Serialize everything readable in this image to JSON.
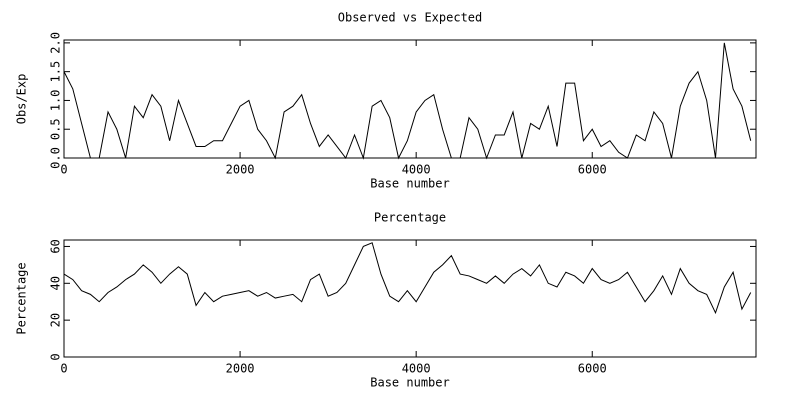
{
  "chart_data": [
    {
      "type": "line",
      "title": "Observed vs Expected",
      "xlabel": "Base number",
      "ylabel": "Obs/Exp",
      "color": "#000000",
      "x": [
        0,
        100,
        200,
        300,
        400,
        500,
        600,
        700,
        800,
        900,
        1000,
        1100,
        1200,
        1300,
        1400,
        1500,
        1600,
        1700,
        1800,
        1900,
        2000,
        2100,
        2200,
        2300,
        2400,
        2500,
        2600,
        2700,
        2800,
        2900,
        3000,
        3100,
        3200,
        3300,
        3400,
        3500,
        3600,
        3700,
        3800,
        3900,
        4000,
        4100,
        4200,
        4300,
        4400,
        4500,
        4600,
        4700,
        4800,
        4900,
        5000,
        5100,
        5200,
        5300,
        5400,
        5500,
        5600,
        5700,
        5800,
        5900,
        6000,
        6100,
        6200,
        6300,
        6400,
        6500,
        6600,
        6700,
        6800,
        6900,
        7000,
        7100,
        7200,
        7300,
        7400,
        7500,
        7600,
        7700,
        7800
      ],
      "values": [
        1.5,
        1.2,
        0.6,
        0.0,
        0.0,
        0.8,
        0.5,
        0.0,
        0.9,
        0.7,
        1.1,
        0.9,
        0.3,
        1.0,
        0.6,
        0.2,
        0.2,
        0.3,
        0.3,
        0.6,
        0.9,
        1.0,
        0.5,
        0.3,
        0.0,
        0.8,
        0.9,
        1.1,
        0.6,
        0.2,
        0.4,
        0.2,
        0.0,
        0.4,
        0.0,
        0.9,
        1.0,
        0.7,
        0.0,
        0.3,
        0.8,
        1.0,
        1.1,
        0.5,
        0.0,
        0.0,
        0.7,
        0.5,
        0.0,
        0.4,
        0.4,
        0.8,
        0.0,
        0.6,
        0.5,
        0.9,
        0.2,
        1.3,
        1.3,
        0.3,
        0.5,
        0.2,
        0.3,
        0.1,
        0.0,
        0.4,
        0.3,
        0.8,
        0.6,
        0.0,
        0.9,
        1.3,
        1.5,
        1.0,
        0.0,
        2.0,
        1.2,
        0.9,
        0.3
      ],
      "xlim": [
        0,
        7860
      ],
      "ylim": [
        0,
        2.05
      ],
      "xticks": [
        0,
        2000,
        4000,
        6000
      ],
      "yticks": [
        {
          "value": 0,
          "label": "0.0"
        },
        0.5,
        {
          "value": 1,
          "label": "1.0"
        },
        1.5,
        {
          "value": 2,
          "label": "2.0"
        }
      ]
    },
    {
      "type": "line",
      "title": "Percentage",
      "xlabel": "Base number",
      "ylabel": "Percentage",
      "color": "#000000",
      "x": [
        0,
        100,
        200,
        300,
        400,
        500,
        600,
        700,
        800,
        900,
        1000,
        1100,
        1200,
        1300,
        1400,
        1500,
        1600,
        1700,
        1800,
        1900,
        2000,
        2100,
        2200,
        2300,
        2400,
        2500,
        2600,
        2700,
        2800,
        2900,
        3000,
        3100,
        3200,
        3300,
        3400,
        3500,
        3600,
        3700,
        3800,
        3900,
        4000,
        4100,
        4200,
        4300,
        4400,
        4500,
        4600,
        4700,
        4800,
        4900,
        5000,
        5100,
        5200,
        5300,
        5400,
        5500,
        5600,
        5700,
        5800,
        5900,
        6000,
        6100,
        6200,
        6300,
        6400,
        6500,
        6600,
        6700,
        6800,
        6900,
        7000,
        7100,
        7200,
        7300,
        7400,
        7500,
        7600,
        7700,
        7800
      ],
      "values": [
        45,
        42,
        36,
        34,
        30,
        35,
        38,
        42,
        45,
        50,
        46,
        40,
        45,
        49,
        45,
        28,
        35,
        30,
        33,
        34,
        35,
        36,
        33,
        35,
        32,
        33,
        34,
        30,
        42,
        45,
        33,
        35,
        40,
        50,
        60,
        62,
        45,
        33,
        30,
        36,
        30,
        38,
        46,
        50,
        55,
        45,
        44,
        42,
        40,
        44,
        40,
        45,
        48,
        44,
        50,
        40,
        38,
        46,
        44,
        40,
        48,
        42,
        40,
        42,
        46,
        38,
        30,
        36,
        44,
        34,
        48,
        40,
        36,
        34,
        24,
        38,
        46,
        26,
        35
      ],
      "xlim": [
        0,
        7860
      ],
      "ylim": [
        0,
        63.5
      ],
      "xticks": [
        0,
        2000,
        4000,
        6000
      ],
      "yticks": [
        0,
        20,
        40,
        60
      ]
    }
  ]
}
